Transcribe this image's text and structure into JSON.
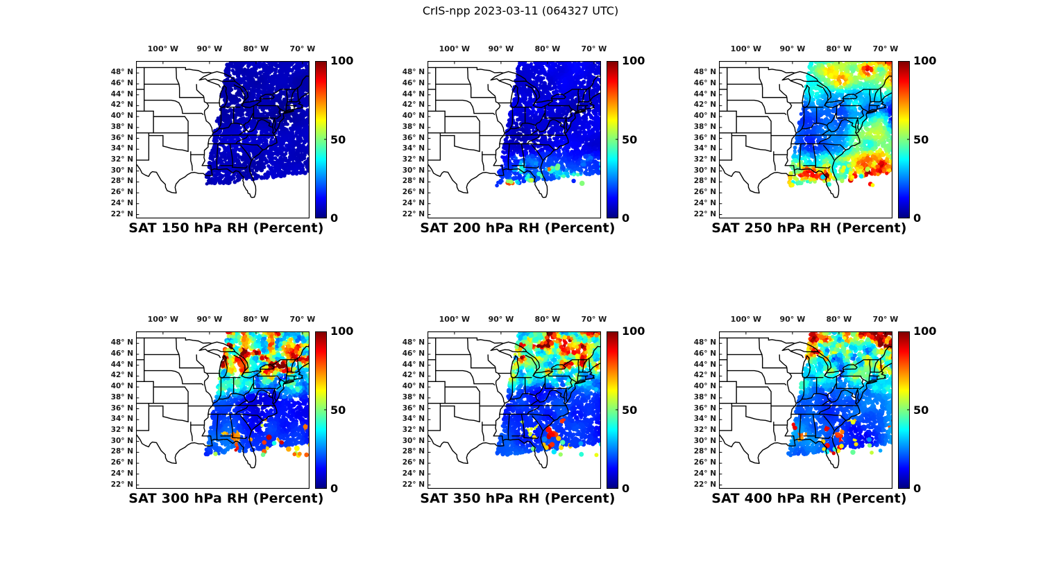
{
  "figure_title": "CrIS-npp 2023-03-11 (064327 UTC)",
  "chart_data": {
    "type": "heatmap",
    "instrument": "CrIS-npp",
    "date": "2023-03-11",
    "time_utc": "064327",
    "variable": "SAT RH (Percent)",
    "layout": {
      "rows": 2,
      "cols": 3,
      "grid": true,
      "colorbar_position": "right-of-each-panel"
    },
    "panels": [
      {
        "level_hPa": 150,
        "title": "SAT 150 hPa RH (Percent)",
        "rh_summary": "Satellite swath over eastern US nearly uniform 0-10% RH (dark blue)."
      },
      {
        "level_hPa": 200,
        "title": "SAT 200 hPa RH (Percent)",
        "rh_summary": "Mostly 0-15% RH; 30-60% patches along the southern swath edge near the Gulf and Atlantic coasts."
      },
      {
        "level_hPa": 250,
        "title": "SAT 250 hPa RH (Percent)",
        "rh_summary": "10-40% over interior; 50-95% over the Northeast and offshore Atlantic; 40-75% band along the southern edge."
      },
      {
        "level_hPa": 300,
        "title": "SAT 300 hPa RH (Percent)",
        "rh_summary": "Speckled 30-100% north of about 38N; 0-25% over mid-Atlantic and Southeast; scattered 50-90% dots offshore."
      },
      {
        "level_hPa": 350,
        "title": "SAT 350 hPa RH (Percent)",
        "rh_summary": "Speckled 30-90% north of about 39N; low 0-25% to the south; scattered bright dots offshore."
      },
      {
        "level_hPa": 400,
        "title": "SAT 400 hPa RH (Percent)",
        "rh_summary": "Mixed 20-80% in the north with a high-RH patch near Maine; 0-25% south; scattered bright dots offshore."
      }
    ],
    "axes": {
      "x_tick_labels": [
        "100° W",
        "90° W",
        "80° W",
        "70° W"
      ],
      "x_tick_lons": [
        -100,
        -90,
        -80,
        -70
      ],
      "y_tick_labels": [
        "48° N",
        "46° N",
        "44° N",
        "42° N",
        "40° N",
        "38° N",
        "36° N",
        "34° N",
        "32° N",
        "30° N",
        "28° N",
        "26° N",
        "24° N",
        "22° N"
      ],
      "y_tick_lats": [
        48,
        46,
        44,
        42,
        40,
        38,
        36,
        34,
        32,
        30,
        28,
        26,
        24,
        22
      ],
      "lon_range": [
        -105.8,
        -68.5
      ],
      "lat_range": [
        21.3,
        50.2
      ]
    },
    "colorbar": {
      "min": 0,
      "max": 100,
      "tick_labels": [
        "100",
        "50",
        "0"
      ],
      "tick_values": [
        100,
        50,
        0
      ],
      "colormap": "jet",
      "units": "Percent",
      "low_color": "#00007f",
      "high_color": "#7f0000"
    },
    "map": {
      "boundary_color": "#000000",
      "background_color": "#ffffff",
      "region": "eastern and central United States with state boundaries"
    }
  }
}
